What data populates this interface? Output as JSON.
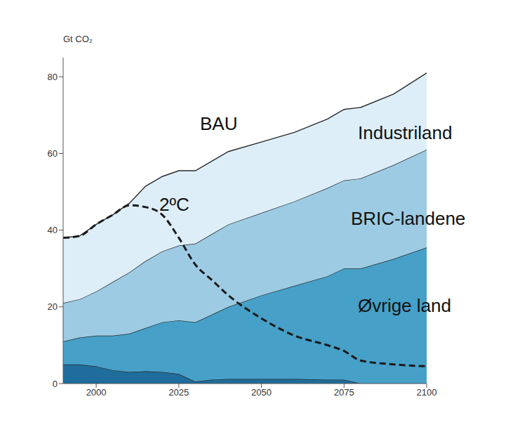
{
  "chart_data": {
    "type": "area",
    "stacked": true,
    "grid": false,
    "y_label": "Gt CO₂",
    "annotations": [
      "BAU"
    ],
    "x": [
      1990,
      1995,
      2000,
      2005,
      2010,
      2015,
      2020,
      2025,
      2030,
      2035,
      2040,
      2050,
      2060,
      2070,
      2075,
      2080,
      2090,
      2100
    ],
    "xlim": [
      1990,
      2100
    ],
    "xticks": [
      2000,
      2025,
      2050,
      2075,
      2100
    ],
    "ylim": [
      0,
      85
    ],
    "yticks": [
      0,
      20,
      40,
      60,
      80
    ],
    "series": [
      {
        "name": null,
        "color": "#1f6d9c",
        "values": [
          5,
          5,
          4.5,
          3.5,
          3,
          3.2,
          3,
          2.5,
          0.5,
          1,
          1.2,
          1.2,
          1.2,
          1,
          1,
          0,
          0,
          0
        ]
      },
      {
        "name": "Øvrige land",
        "color": "#46a0c8",
        "values": [
          6,
          7,
          8,
          9,
          10,
          11.3,
          13,
          14,
          15.5,
          17,
          18.8,
          21.8,
          24.3,
          27,
          29,
          30,
          32.5,
          35.5
        ]
      },
      {
        "name": "BRIC-landene",
        "color": "#9dcbe3",
        "values": [
          10,
          10,
          11.5,
          14,
          16,
          17.5,
          18.5,
          19.5,
          20.5,
          21,
          21.5,
          21.5,
          22,
          23,
          23,
          23.5,
          24.5,
          25.5
        ]
      },
      {
        "name": "Industriland",
        "color": "#ddeef8",
        "values": [
          17,
          16.5,
          17.5,
          17.5,
          18,
          19.5,
          19.5,
          19.5,
          19,
          19,
          19,
          18.5,
          18,
          18,
          18.5,
          18.5,
          18.5,
          20
        ]
      },
      {
        "name": "2ºC",
        "type": "line",
        "line_style": "dashed",
        "color": "#1a1a1a",
        "values": [
          38,
          38.5,
          41.5,
          44,
          46.5,
          46,
          44,
          38,
          31,
          27,
          23,
          17,
          12.5,
          10,
          8.5,
          6,
          5,
          4.5
        ]
      }
    ]
  }
}
